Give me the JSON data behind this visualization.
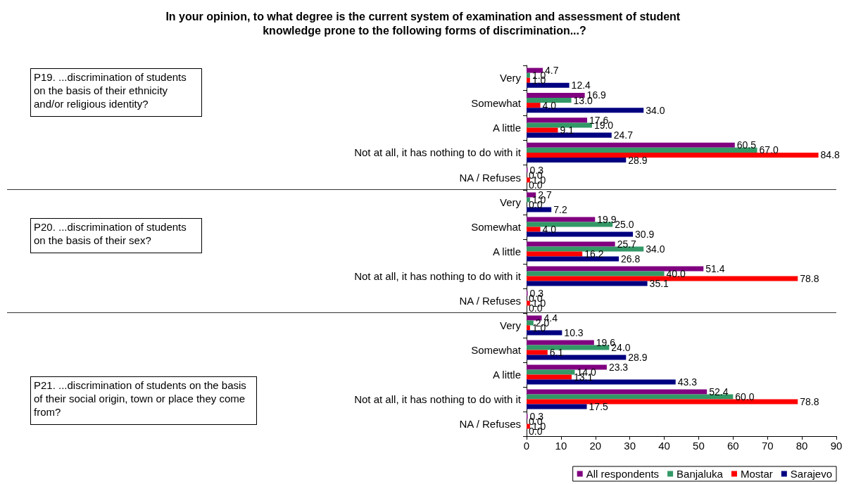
{
  "chart_data": [
    {
      "type": "bar",
      "orientation": "horizontal",
      "title": "In your opinion, to what degree is the current system of examination and assessment of student knowledge prone to the following forms of discrimination...?",
      "annotations": [
        "P19. ...discrimination of students on the basis of their ethnicity and/or religious identity?"
      ],
      "categories": [
        "Very",
        "Somewhat",
        "A little",
        "Not at all, it has nothing to do with it",
        "NA / Refuses"
      ],
      "xlim": [
        0,
        90
      ],
      "xticks": [
        0,
        10,
        20,
        30,
        40,
        50,
        60,
        70,
        80,
        90
      ],
      "tick_labels": "y",
      "grid": false,
      "legend": false,
      "series": [
        {
          "color": "#800080",
          "values": [
            4.7,
            16.9,
            17.6,
            60.5,
            0.3
          ],
          "value_labels": [
            "4.7",
            "16.9",
            "17.6",
            "60.5",
            "0.3"
          ]
        },
        {
          "color": "#339966",
          "values": [
            1.0,
            13.0,
            19.0,
            67.0,
            0.0
          ],
          "value_labels": [
            "1.0",
            "13.0",
            "19.0",
            "67.0",
            "0.0"
          ]
        },
        {
          "color": "#ff0000",
          "values": [
            1.0,
            4.0,
            9.1,
            84.8,
            1.0
          ],
          "value_labels": [
            "1.0",
            "4.0",
            "9.1",
            "84.8",
            "1.0"
          ]
        },
        {
          "color": "#000080",
          "values": [
            12.4,
            34.0,
            24.7,
            28.9,
            0.0
          ],
          "value_labels": [
            "12.4",
            "34.0",
            "24.7",
            "28.9",
            "0.0"
          ]
        }
      ]
    },
    {
      "type": "bar",
      "orientation": "horizontal",
      "annotations": [
        "P20. ...discrimination of students on the basis of their sex?"
      ],
      "categories": [
        "Very",
        "Somewhat",
        "A little",
        "Not at all, it has nothing to do with it",
        "NA / Refuses"
      ],
      "xlim": [
        0,
        90
      ],
      "xticks": [
        0,
        10,
        20,
        30,
        40,
        50,
        60,
        70,
        80,
        90
      ],
      "tick_labels": "y",
      "grid": false,
      "legend": false,
      "series": [
        {
          "color": "#800080",
          "values": [
            2.7,
            19.9,
            25.7,
            51.4,
            0.3
          ],
          "value_labels": [
            "2.7",
            "19.9",
            "25.7",
            "51.4",
            "0.3"
          ]
        },
        {
          "color": "#339966",
          "values": [
            1.0,
            25.0,
            34.0,
            40.0,
            0.0
          ],
          "value_labels": [
            "1.0",
            "25.0",
            "34.0",
            "40.0",
            "0.0"
          ]
        },
        {
          "color": "#ff0000",
          "values": [
            0.0,
            4.0,
            16.2,
            78.8,
            1.0
          ],
          "value_labels": [
            "0.0",
            "4.0",
            "16.2",
            "78.8",
            "1.0"
          ]
        },
        {
          "color": "#000080",
          "values": [
            7.2,
            30.9,
            26.8,
            35.1,
            0.0
          ],
          "value_labels": [
            "7.2",
            "30.9",
            "26.8",
            "35.1",
            "0.0"
          ]
        }
      ]
    },
    {
      "type": "bar",
      "orientation": "horizontal",
      "annotations": [
        "P21. ...discrimination of students on the basis of their social origin, town or place they come from?"
      ],
      "categories": [
        "Very",
        "Somewhat",
        "A little",
        "Not at all, it has nothing to do with it",
        "NA / Refuses"
      ],
      "xlim": [
        0,
        90
      ],
      "xticks": [
        0,
        10,
        20,
        30,
        40,
        50,
        60,
        70,
        80,
        90
      ],
      "grid": false,
      "legend": "bottom",
      "series": [
        {
          "name": "All respondents",
          "color": "#800080",
          "values": [
            4.4,
            19.6,
            23.3,
            52.4,
            0.3
          ],
          "value_labels": [
            "4.4",
            "19.6",
            "23.3",
            "52.4",
            "0.3"
          ]
        },
        {
          "name": "Banjaluka",
          "color": "#339966",
          "values": [
            2.0,
            24.0,
            14.0,
            60.0,
            0.0
          ],
          "value_labels": [
            "2.0",
            "24.0",
            "14.0",
            "60.0",
            "0.0"
          ]
        },
        {
          "name": "Mostar",
          "color": "#ff0000",
          "values": [
            1.0,
            6.1,
            13.1,
            78.8,
            1.0
          ],
          "value_labels": [
            "1.0",
            "6.1",
            "13.1",
            "78.8",
            "1.0"
          ]
        },
        {
          "name": "Sarajevo",
          "color": "#000080",
          "values": [
            10.3,
            28.9,
            43.3,
            17.5,
            0.0
          ],
          "value_labels": [
            "10.3",
            "28.9",
            "43.3",
            "17.5",
            "0.0"
          ]
        }
      ]
    }
  ]
}
